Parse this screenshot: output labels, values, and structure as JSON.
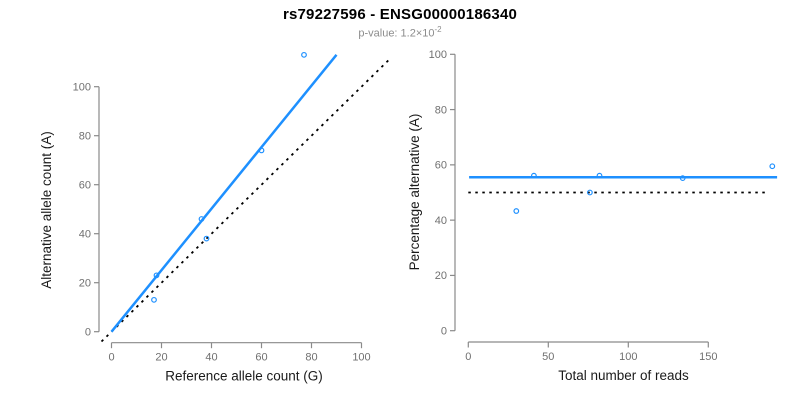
{
  "header": {
    "title": "rs79227596 - ENSG00000186340",
    "subtitle_main": "p-value: 1.2×10",
    "subtitle_exponent": "-2"
  },
  "colors": {
    "accent_blue": "#1E90FF",
    "dashed_black": "#000000",
    "axis_gray": "#8a8a8a",
    "tick_label_gray": "#707070",
    "axis_title_black": "#1a1a1a",
    "subtitle_gray": "#8c8c8c"
  },
  "chart_data": [
    {
      "type": "scatter",
      "name": "allele-count-scatter",
      "xlabel": "Reference allele count (G)",
      "ylabel": "Alternative allele count (A)",
      "xlim": [
        0,
        100
      ],
      "ylim": [
        0,
        113
      ],
      "grid": false,
      "xticks": [
        0,
        20,
        40,
        60,
        80,
        100
      ],
      "yticks": [
        0,
        20,
        40,
        60,
        80,
        100
      ],
      "points": [
        [
          17,
          13
        ],
        [
          18,
          23
        ],
        [
          36,
          46
        ],
        [
          38,
          38
        ],
        [
          60,
          74
        ],
        [
          77,
          113
        ]
      ],
      "lines": [
        {
          "name": "identity-line",
          "style": "dashed",
          "color": "#000000",
          "x1": -4,
          "y1": -4,
          "x2": 111,
          "y2": 111
        },
        {
          "name": "fit-line",
          "style": "solid",
          "color": "#1E90FF",
          "x1": 0,
          "y1": 0,
          "x2": 90,
          "y2": 113
        }
      ]
    },
    {
      "type": "scatter",
      "name": "percentage-alternative-scatter",
      "xlabel": "Total number of reads",
      "ylabel": "Percentage alternative (A)",
      "xlim": [
        0,
        190
      ],
      "ylim": [
        0,
        100
      ],
      "grid": false,
      "xticks": [
        0,
        50,
        100,
        150
      ],
      "yticks": [
        0,
        20,
        40,
        60,
        80,
        100
      ],
      "points": [
        [
          30,
          43.3
        ],
        [
          41,
          56.1
        ],
        [
          76,
          50
        ],
        [
          82,
          56.1
        ],
        [
          134,
          55.2
        ],
        [
          190,
          59.5
        ]
      ],
      "lines": [
        {
          "name": "fifty-percent-line",
          "style": "dashed",
          "color": "#000000",
          "x1": 0,
          "y1": 50,
          "x2": 188,
          "y2": 50
        },
        {
          "name": "mean-percentage-line",
          "style": "solid",
          "color": "#1E90FF",
          "x1": 0.5,
          "y1": 55.5,
          "x2": 193,
          "y2": 55.5
        }
      ]
    }
  ]
}
